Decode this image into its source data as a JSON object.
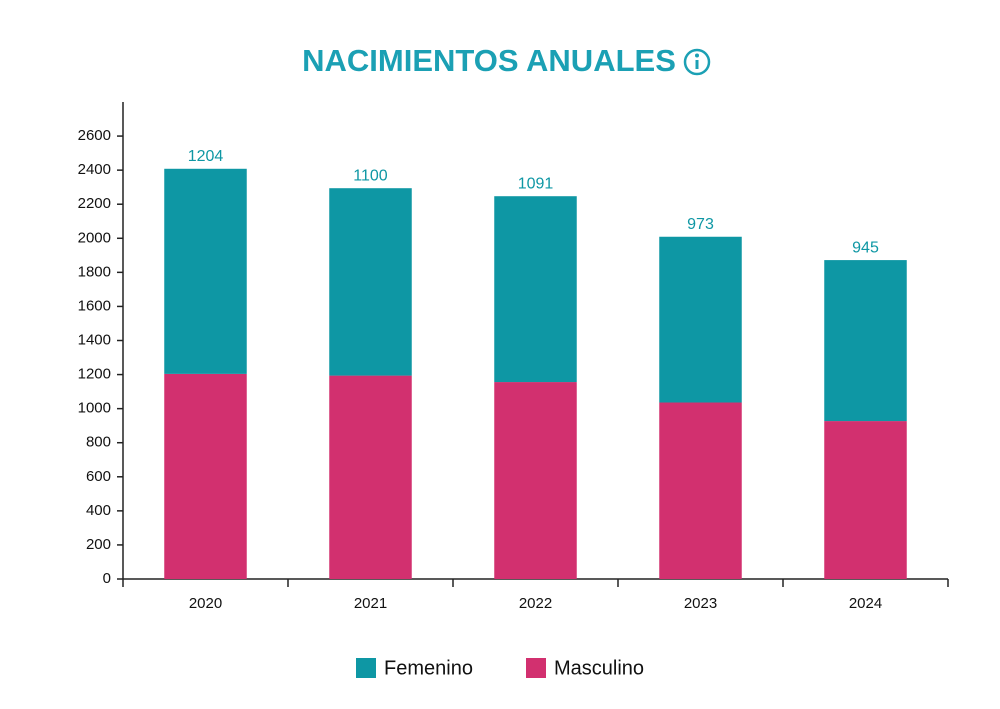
{
  "chart_data": {
    "type": "stacked-bar",
    "title": "NACIMIENTOS ANUALES",
    "categories": [
      "2020",
      "2021",
      "2022",
      "2023",
      "2024"
    ],
    "series": [
      {
        "name": "Femenino",
        "color": "#0e97a4",
        "values": [
          1204,
          1100,
          1091,
          973,
          945
        ]
      },
      {
        "name": "Masculino",
        "color": "#d2306f",
        "values": [
          1204,
          1194,
          1156,
          1036,
          927
        ]
      }
    ],
    "ylim": [
      0,
      2800
    ],
    "yticks": [
      0,
      200,
      400,
      600,
      800,
      1000,
      1200,
      1400,
      1600,
      1800,
      2000,
      2200,
      2400,
      2600
    ],
    "legend": "bottom"
  }
}
